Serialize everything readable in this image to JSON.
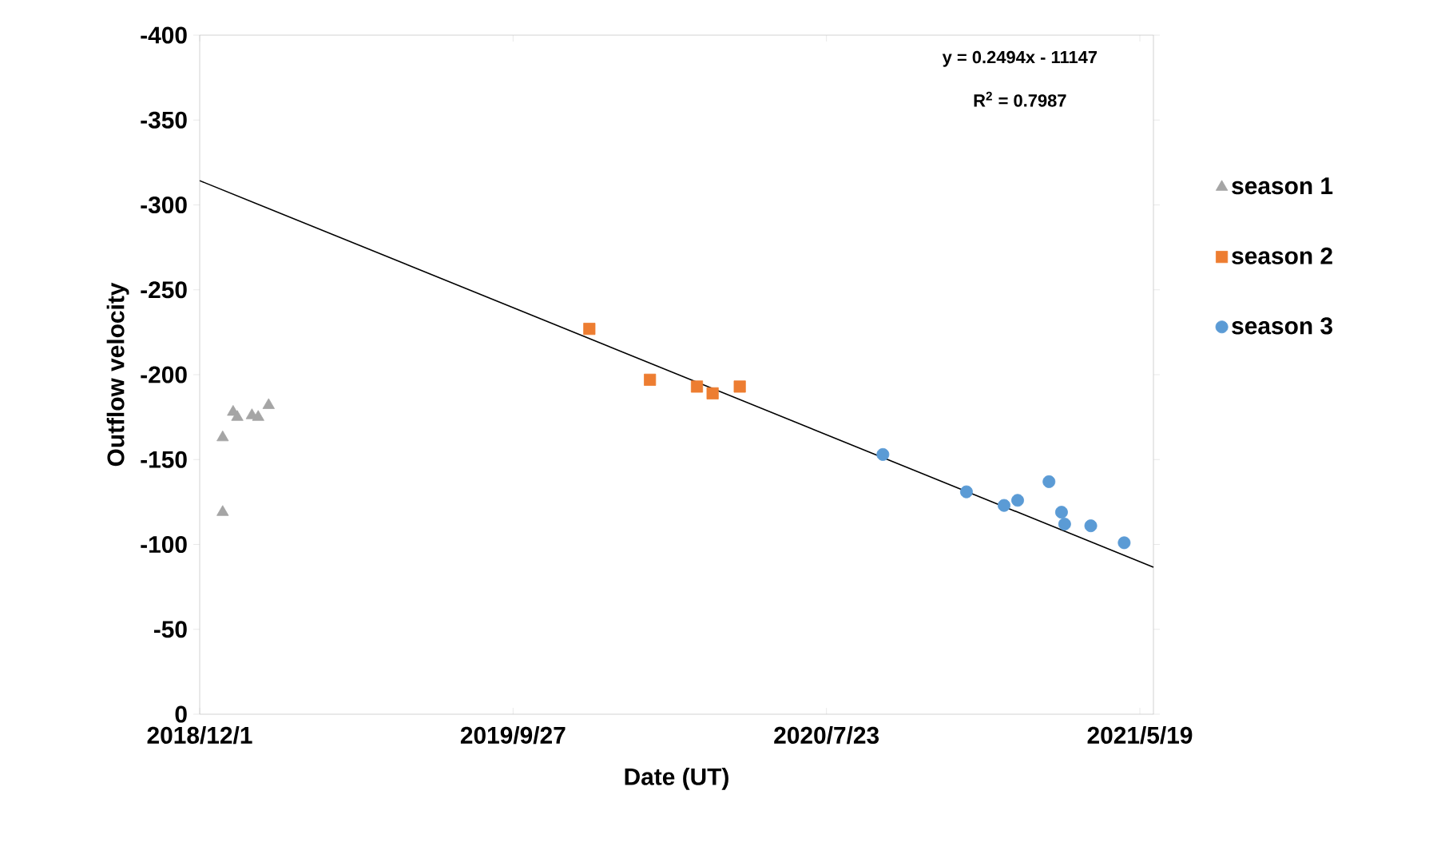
{
  "chart_data": {
    "type": "scatter",
    "xlabel": "Date (UT)",
    "ylabel": "Outflow velocity",
    "xlim": [
      "2018-12-01",
      "2021-06-01"
    ],
    "ylim": [
      0,
      -400
    ],
    "xticks": [
      {
        "value": "2018-12-01",
        "label": "2018/12/1"
      },
      {
        "value": "2019-09-27",
        "label": "2019/9/27"
      },
      {
        "value": "2020-07-23",
        "label": "2020/7/23"
      },
      {
        "value": "2021-05-19",
        "label": "2021/5/19"
      }
    ],
    "yticks": [
      0,
      -50,
      -100,
      -150,
      -200,
      -250,
      -300,
      -350,
      -400
    ],
    "legend": "right",
    "grid": false,
    "annotations": [
      "y = 0.2494x - 11147",
      "R$^{2}$ = 0.7987"
    ],
    "series": [
      {
        "name": "season 1",
        "color": "#a5a5a5",
        "marker": "triangle",
        "x": [
          "2018-12-23",
          "2018-12-23",
          "2019-01-02",
          "2019-01-06",
          "2019-01-20",
          "2019-01-26",
          "2019-02-05"
        ],
        "values": [
          -119,
          -163,
          -178,
          -175,
          -176,
          -175,
          -182
        ]
      },
      {
        "name": "season 2",
        "color": "#ed7d31",
        "marker": "square",
        "x": [
          "2019-12-09",
          "2020-02-05",
          "2020-03-21",
          "2020-04-05",
          "2020-05-01"
        ],
        "values": [
          -227,
          -197,
          -193,
          -189,
          -193
        ]
      },
      {
        "name": "season 3",
        "color": "#5b9bd5",
        "marker": "circle",
        "x": [
          "2020-09-15",
          "2020-12-04",
          "2021-01-09",
          "2021-01-22",
          "2021-02-21",
          "2021-03-05",
          "2021-03-08",
          "2021-04-02",
          "2021-05-04"
        ],
        "values": [
          -153,
          -131,
          -123,
          -126,
          -137,
          -119,
          -112,
          -111,
          -101
        ]
      },
      {
        "type": "line",
        "color": "#000000",
        "marker": "none",
        "line_style": "solid",
        "x": [
          "2018-12-01",
          "2021-06-01"
        ],
        "values": [
          -314.3,
          -86.6
        ]
      }
    ]
  }
}
